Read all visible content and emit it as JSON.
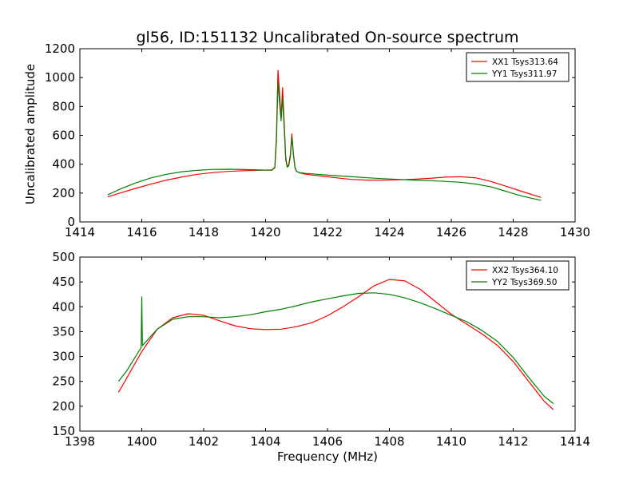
{
  "chart_data": [
    {
      "type": "line",
      "title": "gl56, ID:151132 Uncalibrated On-source spectrum",
      "xlabel": "",
      "ylabel": "Uncalibrated amplitude",
      "xlim": [
        1414,
        1430
      ],
      "ylim": [
        0,
        1200
      ],
      "xticks": [
        "1414",
        "1416",
        "1418",
        "1420",
        "1422",
        "1424",
        "1426",
        "1428",
        "1430"
      ],
      "yticks": [
        "0",
        "200",
        "400",
        "600",
        "800",
        "1000",
        "1200"
      ],
      "legend_position": "top-right",
      "series": [
        {
          "name": "XX1 Tsys313.64",
          "color": "#ff0000",
          "x": [
            1414.9,
            1415.3,
            1415.8,
            1416.3,
            1416.8,
            1417.3,
            1417.8,
            1418.3,
            1418.8,
            1419.3,
            1419.8,
            1420.2,
            1420.3,
            1420.35,
            1420.4,
            1420.45,
            1420.5,
            1420.55,
            1420.6,
            1420.65,
            1420.7,
            1420.75,
            1420.8,
            1420.85,
            1420.9,
            1420.95,
            1421.0,
            1421.1,
            1421.3,
            1421.8,
            1422.3,
            1422.8,
            1423.3,
            1423.8,
            1424.3,
            1424.8,
            1425.3,
            1425.8,
            1426.3,
            1426.8,
            1427.3,
            1427.8,
            1428.3,
            1428.9
          ],
          "y": [
            175,
            200,
            232,
            262,
            290,
            312,
            330,
            342,
            350,
            355,
            358,
            360,
            380,
            600,
            1050,
            900,
            720,
            930,
            700,
            450,
            380,
            400,
            470,
            610,
            470,
            380,
            350,
            340,
            330,
            318,
            305,
            294,
            290,
            290,
            292,
            296,
            302,
            310,
            313,
            305,
            280,
            245,
            210,
            170
          ]
        },
        {
          "name": "YY1 Tsys311.97",
          "color": "#008000",
          "x": [
            1414.9,
            1415.3,
            1415.8,
            1416.3,
            1416.8,
            1417.3,
            1417.8,
            1418.3,
            1418.8,
            1419.3,
            1419.8,
            1420.2,
            1420.3,
            1420.35,
            1420.4,
            1420.45,
            1420.5,
            1420.55,
            1420.6,
            1420.65,
            1420.7,
            1420.75,
            1420.8,
            1420.85,
            1420.9,
            1420.95,
            1421.0,
            1421.1,
            1421.3,
            1421.8,
            1422.3,
            1422.8,
            1423.3,
            1423.8,
            1424.3,
            1424.8,
            1425.3,
            1425.8,
            1426.3,
            1426.8,
            1427.3,
            1427.8,
            1428.3,
            1428.9
          ],
          "y": [
            188,
            228,
            270,
            305,
            330,
            348,
            358,
            364,
            365,
            363,
            360,
            358,
            375,
            560,
            970,
            830,
            700,
            860,
            660,
            430,
            380,
            390,
            450,
            590,
            460,
            375,
            350,
            342,
            336,
            328,
            320,
            313,
            306,
            300,
            295,
            290,
            286,
            281,
            275,
            262,
            242,
            210,
            178,
            150
          ]
        }
      ]
    },
    {
      "type": "line",
      "title": "",
      "xlabel": "Frequency (MHz)",
      "ylabel": "",
      "xlim": [
        1398,
        1414
      ],
      "ylim": [
        150,
        500
      ],
      "xticks": [
        "1398",
        "1400",
        "1402",
        "1404",
        "1406",
        "1408",
        "1410",
        "1412",
        "1414"
      ],
      "yticks": [
        "150",
        "200",
        "250",
        "300",
        "350",
        "400",
        "450",
        "500"
      ],
      "legend_position": "top-right",
      "series": [
        {
          "name": "XX2 Tsys364.10",
          "color": "#ff0000",
          "x": [
            1399.25,
            1399.5,
            1400.0,
            1400.5,
            1401.0,
            1401.5,
            1402.0,
            1402.5,
            1403.0,
            1403.5,
            1404.0,
            1404.5,
            1405.0,
            1405.5,
            1406.0,
            1406.5,
            1407.0,
            1407.5,
            1408.0,
            1408.5,
            1409.0,
            1409.5,
            1410.0,
            1410.5,
            1411.0,
            1411.5,
            1412.0,
            1412.5,
            1413.0,
            1413.3
          ],
          "y": [
            228,
            255,
            310,
            355,
            378,
            386,
            383,
            372,
            362,
            356,
            354,
            355,
            360,
            368,
            382,
            400,
            420,
            442,
            455,
            452,
            435,
            410,
            385,
            365,
            345,
            322,
            290,
            250,
            210,
            193
          ]
        },
        {
          "name": "YY2 Tsys369.50",
          "color": "#008000",
          "x": [
            1399.25,
            1399.5,
            1399.98,
            1400.0,
            1400.02,
            1400.5,
            1401.0,
            1401.5,
            1402.0,
            1402.5,
            1403.0,
            1403.5,
            1404.0,
            1404.5,
            1405.0,
            1405.5,
            1406.0,
            1406.5,
            1407.0,
            1407.5,
            1408.0,
            1408.5,
            1409.0,
            1409.5,
            1410.0,
            1410.5,
            1411.0,
            1411.5,
            1412.0,
            1412.5,
            1413.0,
            1413.3
          ],
          "y": [
            250,
            270,
            318,
            420,
            322,
            355,
            375,
            380,
            380,
            378,
            380,
            384,
            390,
            395,
            402,
            410,
            416,
            422,
            427,
            428,
            425,
            418,
            408,
            396,
            383,
            370,
            352,
            330,
            298,
            258,
            220,
            205
          ]
        }
      ]
    }
  ]
}
